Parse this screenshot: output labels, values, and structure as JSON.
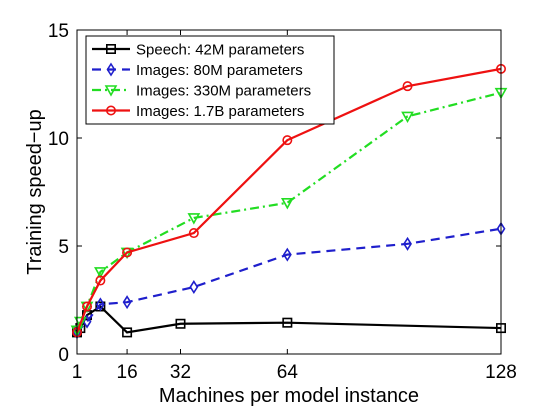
{
  "chart_data": {
    "type": "line",
    "title": "",
    "xlabel": "Machines per model instance",
    "ylabel": "Training speed−up",
    "xlim": [
      1,
      128
    ],
    "ylim": [
      0,
      15
    ],
    "xticks": [
      1,
      16,
      32,
      64,
      128
    ],
    "yticks": [
      0,
      5,
      10,
      15
    ],
    "grid": false,
    "legend_position": "top-left",
    "series": [
      {
        "name": "Speech: 42M parameters",
        "color": "#000000",
        "dash": "solid",
        "marker": "square",
        "points": [
          [
            1,
            1.0
          ],
          [
            2,
            1.2
          ],
          [
            4,
            1.8
          ],
          [
            8,
            2.2
          ],
          [
            16,
            1.0
          ],
          [
            32,
            1.4
          ],
          [
            64,
            1.45
          ],
          [
            128,
            1.2
          ]
        ]
      },
      {
        "name": "Images: 80M parameters",
        "color": "#1f1fcc",
        "dash": "dashed",
        "marker": "diamond",
        "points": [
          [
            1,
            1.0
          ],
          [
            4,
            1.5
          ],
          [
            8,
            2.3
          ],
          [
            16,
            2.4
          ],
          [
            36,
            3.1
          ],
          [
            64,
            4.6
          ],
          [
            100,
            5.1
          ],
          [
            128,
            5.8
          ]
        ]
      },
      {
        "name": "Images: 330M parameters",
        "color": "#22dd22",
        "dash": "dashdot",
        "marker": "triangle-down",
        "points": [
          [
            1,
            1.1
          ],
          [
            2,
            1.5
          ],
          [
            4,
            2.2
          ],
          [
            8,
            3.8
          ],
          [
            16,
            4.7
          ],
          [
            36,
            6.3
          ],
          [
            64,
            7.0
          ],
          [
            100,
            11.0
          ],
          [
            128,
            12.1
          ]
        ]
      },
      {
        "name": "Images: 1.7B parameters",
        "color": "#ee1111",
        "dash": "solid",
        "marker": "circle",
        "points": [
          [
            1,
            1.0
          ],
          [
            4,
            2.2
          ],
          [
            8,
            3.4
          ],
          [
            16,
            4.7
          ],
          [
            36,
            5.6
          ],
          [
            64,
            9.9
          ],
          [
            100,
            12.4
          ],
          [
            128,
            13.2
          ]
        ]
      }
    ]
  }
}
